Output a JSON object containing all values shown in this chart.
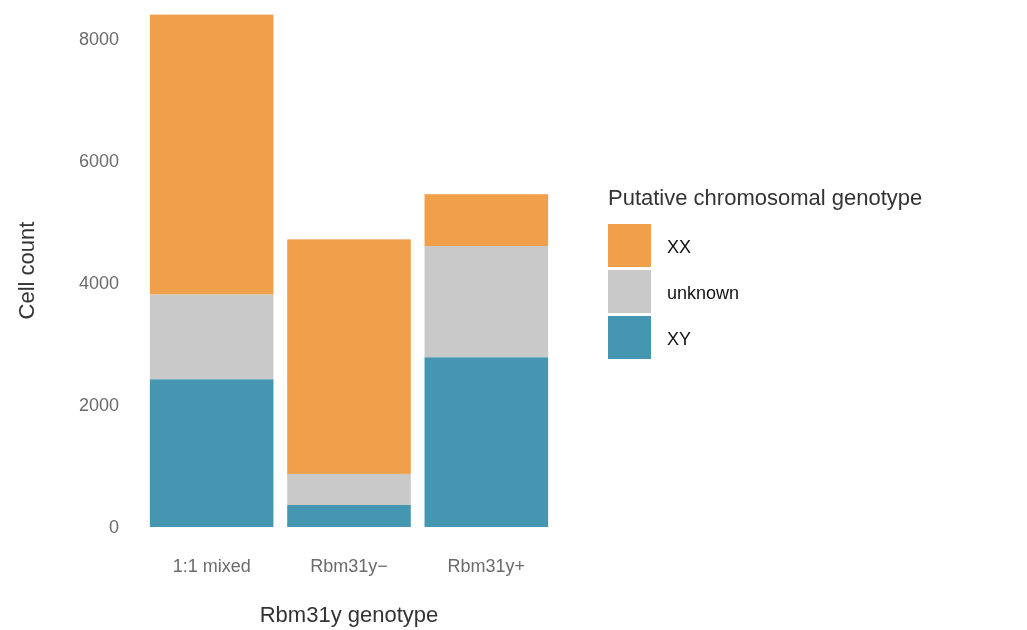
{
  "chart_data": {
    "type": "bar",
    "stacked": true,
    "xlabel": "Rbm31y genotype",
    "ylabel": "Cell count",
    "legend_title": "Putative chromosomal genotype",
    "legend": "right",
    "grid": false,
    "categories": [
      "1:1 mixed",
      "Rbm31y−",
      "Rbm31y+"
    ],
    "series": [
      {
        "name": "XY",
        "color": "#4596b1",
        "values": [
          2420,
          360,
          2780
        ]
      },
      {
        "name": "unknown",
        "color": "#c8c9c8",
        "values": [
          1390,
          510,
          1820
        ]
      },
      {
        "name": "XX",
        "color": "#f0a04b",
        "values": [
          4580,
          3840,
          850
        ]
      }
    ],
    "ylim": [
      0,
      8400
    ],
    "yticks": [
      0,
      2000,
      4000,
      6000,
      8000
    ]
  }
}
